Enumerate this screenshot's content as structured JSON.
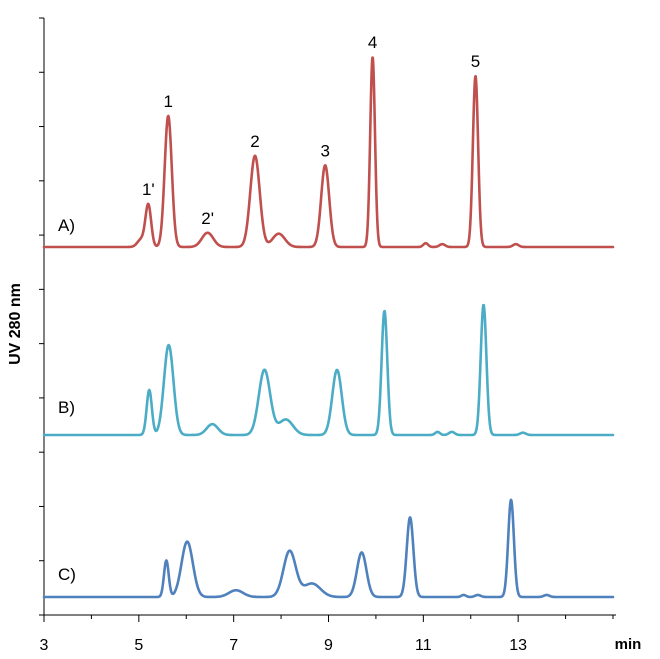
{
  "chart_data": {
    "type": "line",
    "title": "",
    "xlabel": "min",
    "ylabel": "UV 280 nm",
    "xlim": [
      3,
      15
    ],
    "x_ticks": [
      3,
      5,
      7,
      9,
      11,
      13
    ],
    "y_tick_count": 12,
    "grid": false,
    "legend": "none",
    "series": [
      {
        "name": "A)",
        "color": "#c0504d",
        "peaks": [
          {
            "label": "1'",
            "rt": 5.2,
            "height": 0.22,
            "width": 0.06
          },
          {
            "label": "",
            "rt": 5.05,
            "height": 0.04,
            "width": 0.08
          },
          {
            "label": "1",
            "rt": 5.62,
            "height": 0.69,
            "width": 0.075
          },
          {
            "label": "2'",
            "rt": 6.45,
            "height": 0.075,
            "width": 0.12
          },
          {
            "label": "2",
            "rt": 7.45,
            "height": 0.48,
            "width": 0.1
          },
          {
            "label": "",
            "rt": 7.95,
            "height": 0.07,
            "width": 0.13
          },
          {
            "label": "3",
            "rt": 8.93,
            "height": 0.43,
            "width": 0.085
          },
          {
            "label": "4",
            "rt": 9.93,
            "height": 1.0,
            "width": 0.05
          },
          {
            "label": "",
            "rt": 11.05,
            "height": 0.02,
            "width": 0.05
          },
          {
            "label": "",
            "rt": 11.4,
            "height": 0.015,
            "width": 0.06
          },
          {
            "label": "5",
            "rt": 12.1,
            "height": 0.9,
            "width": 0.055
          },
          {
            "label": "",
            "rt": 12.95,
            "height": 0.015,
            "width": 0.06
          }
        ]
      },
      {
        "name": "B)",
        "color": "#4bacc6",
        "peaks": [
          {
            "label": "",
            "rt": 5.22,
            "height": 0.29,
            "width": 0.055
          },
          {
            "label": "",
            "rt": 5.63,
            "height": 0.58,
            "width": 0.1
          },
          {
            "label": "",
            "rt": 6.55,
            "height": 0.07,
            "width": 0.12
          },
          {
            "label": "",
            "rt": 7.65,
            "height": 0.42,
            "width": 0.12
          },
          {
            "label": "",
            "rt": 8.1,
            "height": 0.1,
            "width": 0.15
          },
          {
            "label": "",
            "rt": 9.18,
            "height": 0.42,
            "width": 0.1
          },
          {
            "label": "",
            "rt": 10.18,
            "height": 0.8,
            "width": 0.06
          },
          {
            "label": "",
            "rt": 11.3,
            "height": 0.02,
            "width": 0.05
          },
          {
            "label": "",
            "rt": 11.6,
            "height": 0.02,
            "width": 0.06
          },
          {
            "label": "",
            "rt": 12.27,
            "height": 0.84,
            "width": 0.06
          },
          {
            "label": "",
            "rt": 13.1,
            "height": 0.015,
            "width": 0.06
          }
        ]
      },
      {
        "name": "C)",
        "color": "#4f81bd",
        "peaks": [
          {
            "label": "",
            "rt": 5.58,
            "height": 0.27,
            "width": 0.05
          },
          {
            "label": "",
            "rt": 6.02,
            "height": 0.41,
            "width": 0.12
          },
          {
            "label": "",
            "rt": 7.05,
            "height": 0.05,
            "width": 0.15
          },
          {
            "label": "",
            "rt": 8.18,
            "height": 0.34,
            "width": 0.13
          },
          {
            "label": "",
            "rt": 8.65,
            "height": 0.1,
            "width": 0.18
          },
          {
            "label": "",
            "rt": 9.7,
            "height": 0.33,
            "width": 0.1
          },
          {
            "label": "",
            "rt": 10.72,
            "height": 0.59,
            "width": 0.07
          },
          {
            "label": "",
            "rt": 11.85,
            "height": 0.015,
            "width": 0.05
          },
          {
            "label": "",
            "rt": 12.15,
            "height": 0.015,
            "width": 0.06
          },
          {
            "label": "",
            "rt": 12.85,
            "height": 0.72,
            "width": 0.06
          },
          {
            "label": "",
            "rt": 13.6,
            "height": 0.015,
            "width": 0.06
          }
        ]
      }
    ]
  }
}
